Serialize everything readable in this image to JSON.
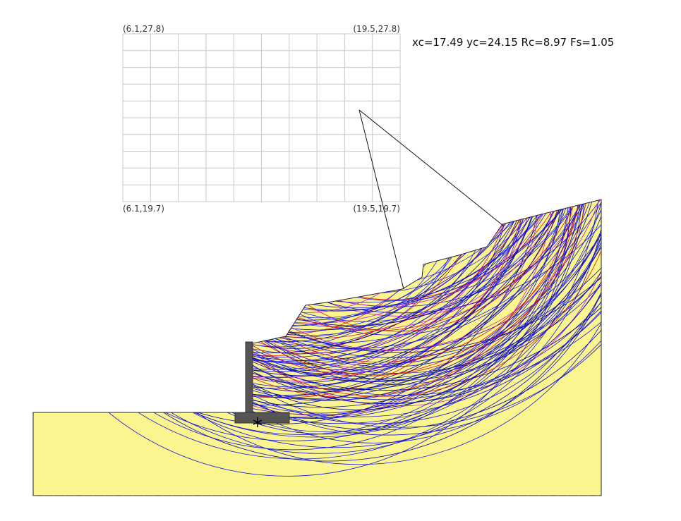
{
  "grid": {
    "top_left": "(6.1,27.8)",
    "top_right": "(19.5,27.8)",
    "bottom_left": "(6.1,19.7)",
    "bottom_right": "(19.5,19.7)"
  },
  "result": "xc=17.49 yc=24.15 Rc=8.97 Fs=1.05"
}
